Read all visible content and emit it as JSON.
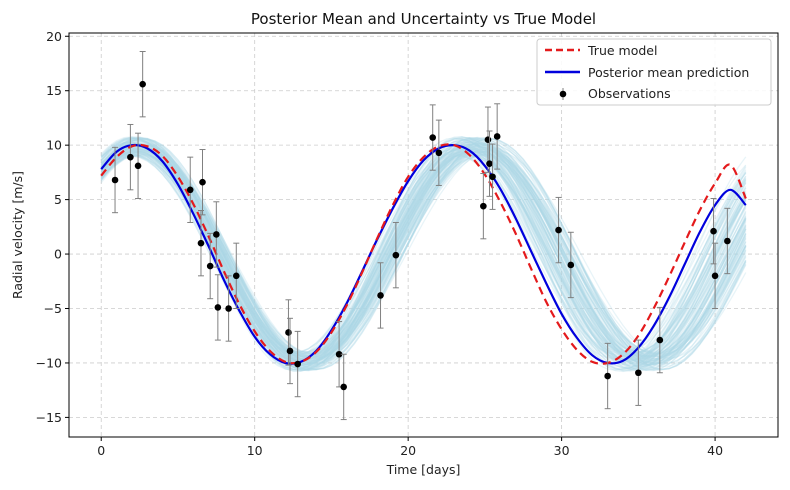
{
  "chart_data": {
    "type": "line",
    "title": "Posterior Mean and Uncertainty vs True Model",
    "xlabel": "Time [days]",
    "ylabel": "Radial velocity [m/s]",
    "xlim": [
      -2.1,
      44.1
    ],
    "ylim": [
      -16.8,
      20.3
    ],
    "xticks": [
      0,
      10,
      20,
      30,
      40
    ],
    "yticks": [
      -15,
      -10,
      -5,
      0,
      5,
      10,
      15,
      20
    ],
    "grid": true,
    "legend_position": "top-right",
    "legend": [
      "True model",
      "Posterior mean prediction",
      "Observations"
    ],
    "colors": {
      "true_model": "#e41a1c",
      "posterior_mean": "#0000dd",
      "posterior_samples": "#add8e6",
      "observations": "#000000",
      "errorbars": "#808080",
      "grid": "#cccccc"
    },
    "series": [
      {
        "name": "True model",
        "style": "dashed",
        "x": [
          0,
          1,
          2,
          3,
          4,
          5,
          6,
          7,
          8,
          9,
          10,
          11,
          12,
          13,
          14,
          15,
          16,
          17,
          18,
          19,
          20,
          21,
          22,
          23,
          24,
          25,
          26,
          27,
          28,
          29,
          30,
          31,
          32,
          33,
          34,
          35,
          36,
          37,
          38,
          39,
          40,
          41,
          42
        ],
        "y": [
          7.2,
          8.9,
          9.9,
          9.9,
          9.0,
          7.1,
          4.6,
          1.6,
          -1.6,
          -4.6,
          -7.1,
          -8.9,
          -9.9,
          -9.9,
          -9.0,
          -7.2,
          -4.7,
          -1.7,
          1.5,
          4.5,
          7.1,
          8.9,
          9.9,
          10.0,
          9.1,
          7.3,
          4.8,
          1.9,
          -1.3,
          -4.4,
          -6.9,
          -8.8,
          -9.9,
          -10.0,
          -9.2,
          -7.5,
          -5.0,
          -2.1,
          1.0,
          4.0,
          6.5,
          8.2,
          5.1
        ]
      },
      {
        "name": "Posterior mean prediction",
        "style": "solid",
        "x": [
          0,
          1,
          2,
          3,
          4,
          5,
          6,
          7,
          8,
          9,
          10,
          11,
          12,
          13,
          14,
          15,
          16,
          17,
          18,
          19,
          20,
          21,
          22,
          23,
          24,
          25,
          26,
          27,
          28,
          29,
          30,
          31,
          32,
          33,
          34,
          35,
          36,
          37,
          38,
          39,
          40,
          41,
          42
        ],
        "y": [
          7.8,
          9.4,
          10.0,
          9.7,
          8.5,
          6.4,
          3.7,
          0.7,
          -2.4,
          -5.2,
          -7.6,
          -9.2,
          -10.0,
          -9.9,
          -8.9,
          -7.0,
          -4.5,
          -1.6,
          1.4,
          4.2,
          6.7,
          8.6,
          9.7,
          10.0,
          9.5,
          8.1,
          6.0,
          3.3,
          0.3,
          -2.7,
          -5.5,
          -7.7,
          -9.3,
          -10.0,
          -9.8,
          -8.6,
          -6.6,
          -4.0,
          -1.0,
          2.0,
          4.5,
          5.9,
          4.5
        ]
      },
      {
        "name": "Observations",
        "style": "errorbar",
        "points": [
          {
            "x": 0.9,
            "y": 6.8,
            "err": 3.0
          },
          {
            "x": 1.9,
            "y": 8.9,
            "err": 3.0
          },
          {
            "x": 2.4,
            "y": 8.1,
            "err": 3.0
          },
          {
            "x": 2.7,
            "y": 15.6,
            "err": 3.0
          },
          {
            "x": 5.8,
            "y": 5.9,
            "err": 3.0
          },
          {
            "x": 6.5,
            "y": 1.0,
            "err": 3.0
          },
          {
            "x": 6.6,
            "y": 6.6,
            "err": 3.0
          },
          {
            "x": 7.1,
            "y": -1.1,
            "err": 3.0
          },
          {
            "x": 7.5,
            "y": 1.8,
            "err": 3.0
          },
          {
            "x": 7.6,
            "y": -4.9,
            "err": 3.0
          },
          {
            "x": 8.3,
            "y": -5.0,
            "err": 3.0
          },
          {
            "x": 8.8,
            "y": -2.0,
            "err": 3.0
          },
          {
            "x": 12.2,
            "y": -7.2,
            "err": 3.0
          },
          {
            "x": 12.3,
            "y": -8.9,
            "err": 3.0
          },
          {
            "x": 12.8,
            "y": -10.1,
            "err": 3.0
          },
          {
            "x": 15.5,
            "y": -9.2,
            "err": 3.0
          },
          {
            "x": 15.8,
            "y": -12.2,
            "err": 3.0
          },
          {
            "x": 18.2,
            "y": -3.8,
            "err": 3.0
          },
          {
            "x": 19.2,
            "y": -0.1,
            "err": 3.0
          },
          {
            "x": 21.6,
            "y": 10.7,
            "err": 3.0
          },
          {
            "x": 22.0,
            "y": 9.3,
            "err": 3.0
          },
          {
            "x": 24.9,
            "y": 4.4,
            "err": 3.0
          },
          {
            "x": 25.2,
            "y": 10.5,
            "err": 3.0
          },
          {
            "x": 25.3,
            "y": 8.3,
            "err": 3.0
          },
          {
            "x": 25.5,
            "y": 7.1,
            "err": 3.0
          },
          {
            "x": 25.8,
            "y": 10.8,
            "err": 3.0
          },
          {
            "x": 29.8,
            "y": 2.2,
            "err": 3.0
          },
          {
            "x": 30.6,
            "y": -1.0,
            "err": 3.0
          },
          {
            "x": 33.0,
            "y": -11.2,
            "err": 3.0
          },
          {
            "x": 35.0,
            "y": -10.9,
            "err": 3.0
          },
          {
            "x": 36.4,
            "y": -7.9,
            "err": 3.0
          },
          {
            "x": 39.9,
            "y": 2.1,
            "err": 3.0
          },
          {
            "x": 40.0,
            "y": -2.0,
            "err": 3.0
          },
          {
            "x": 40.8,
            "y": 1.2,
            "err": 3.0
          }
        ]
      }
    ],
    "posterior_band": {
      "description": "many faint posterior sample curves",
      "amplitude_range": [
        9.0,
        10.8
      ],
      "period_range": [
        21.0,
        22.8
      ],
      "phase_spread": 1.0
    }
  }
}
